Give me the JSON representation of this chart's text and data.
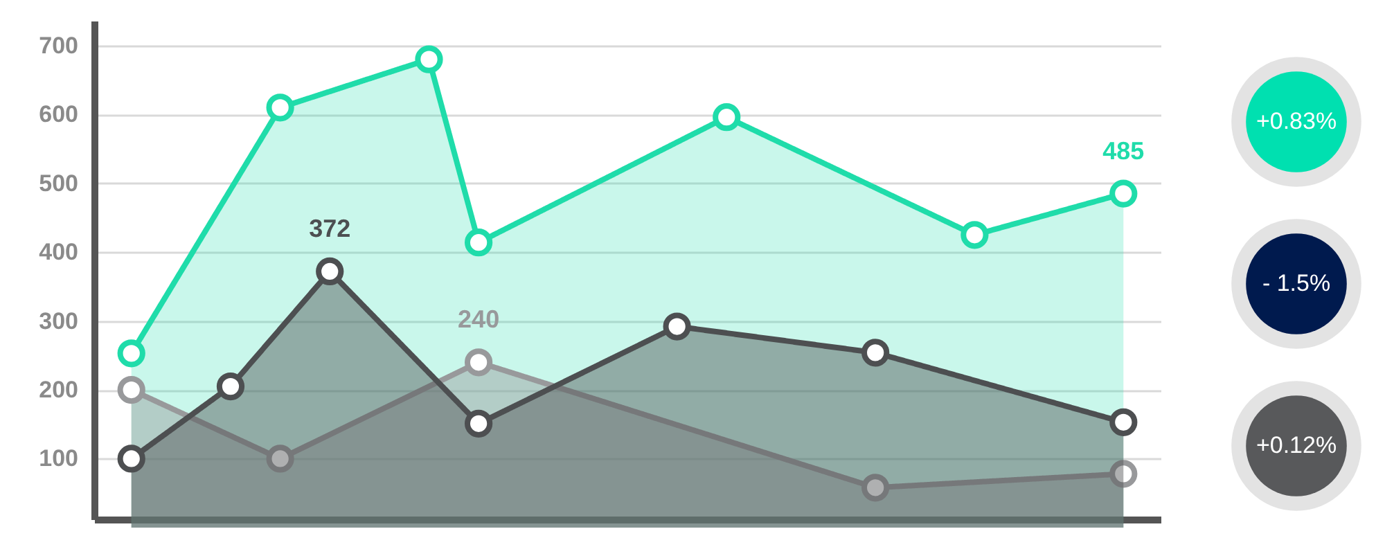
{
  "chart_data": {
    "type": "area",
    "categories": [
      null,
      null,
      null,
      null,
      null,
      null,
      null,
      null,
      null,
      null,
      null,
      null,
      null,
      null,
      null,
      null,
      null,
      null,
      null,
      null,
      null
    ],
    "ylim": [
      12,
      736
    ],
    "yticks": [
      100,
      200,
      300,
      400,
      500,
      600,
      700
    ],
    "tick_labels": "y",
    "grid": "y",
    "marker": "circle",
    "line_style": "solid",
    "series": [
      {
        "color": "#1fdcaa",
        "values": [
          253,
          null,
          null,
          610,
          null,
          null,
          680,
          414,
          null,
          null,
          null,
          null,
          596,
          null,
          null,
          null,
          null,
          425,
          null,
          null,
          485
        ],
        "value_labels": [
          null,
          null,
          null,
          null,
          null,
          null,
          null,
          null,
          null,
          null,
          null,
          null,
          null,
          null,
          null,
          null,
          null,
          null,
          null,
          null,
          "485"
        ]
      },
      {
        "color": "#98999b",
        "values": [
          200,
          null,
          null,
          100,
          null,
          null,
          null,
          240,
          null,
          null,
          null,
          null,
          null,
          null,
          null,
          58,
          null,
          null,
          null,
          null,
          78
        ],
        "value_labels": [
          null,
          null,
          null,
          null,
          null,
          null,
          null,
          "240",
          null,
          null,
          null,
          null,
          null,
          null,
          null,
          null,
          null,
          null,
          null,
          null,
          null
        ]
      },
      {
        "color": "#4d4f51",
        "values": [
          100,
          null,
          205,
          null,
          372,
          null,
          null,
          151,
          null,
          null,
          null,
          292,
          null,
          null,
          null,
          254,
          null,
          null,
          null,
          null,
          153
        ],
        "value_labels": [
          null,
          null,
          null,
          null,
          "372",
          null,
          null,
          null,
          null,
          null,
          null,
          null,
          null,
          null,
          null,
          null,
          null,
          null,
          null,
          null,
          null
        ]
      }
    ],
    "annotations": [
      "+0.83%",
      "- 1.5%",
      "+0.12%"
    ]
  }
}
